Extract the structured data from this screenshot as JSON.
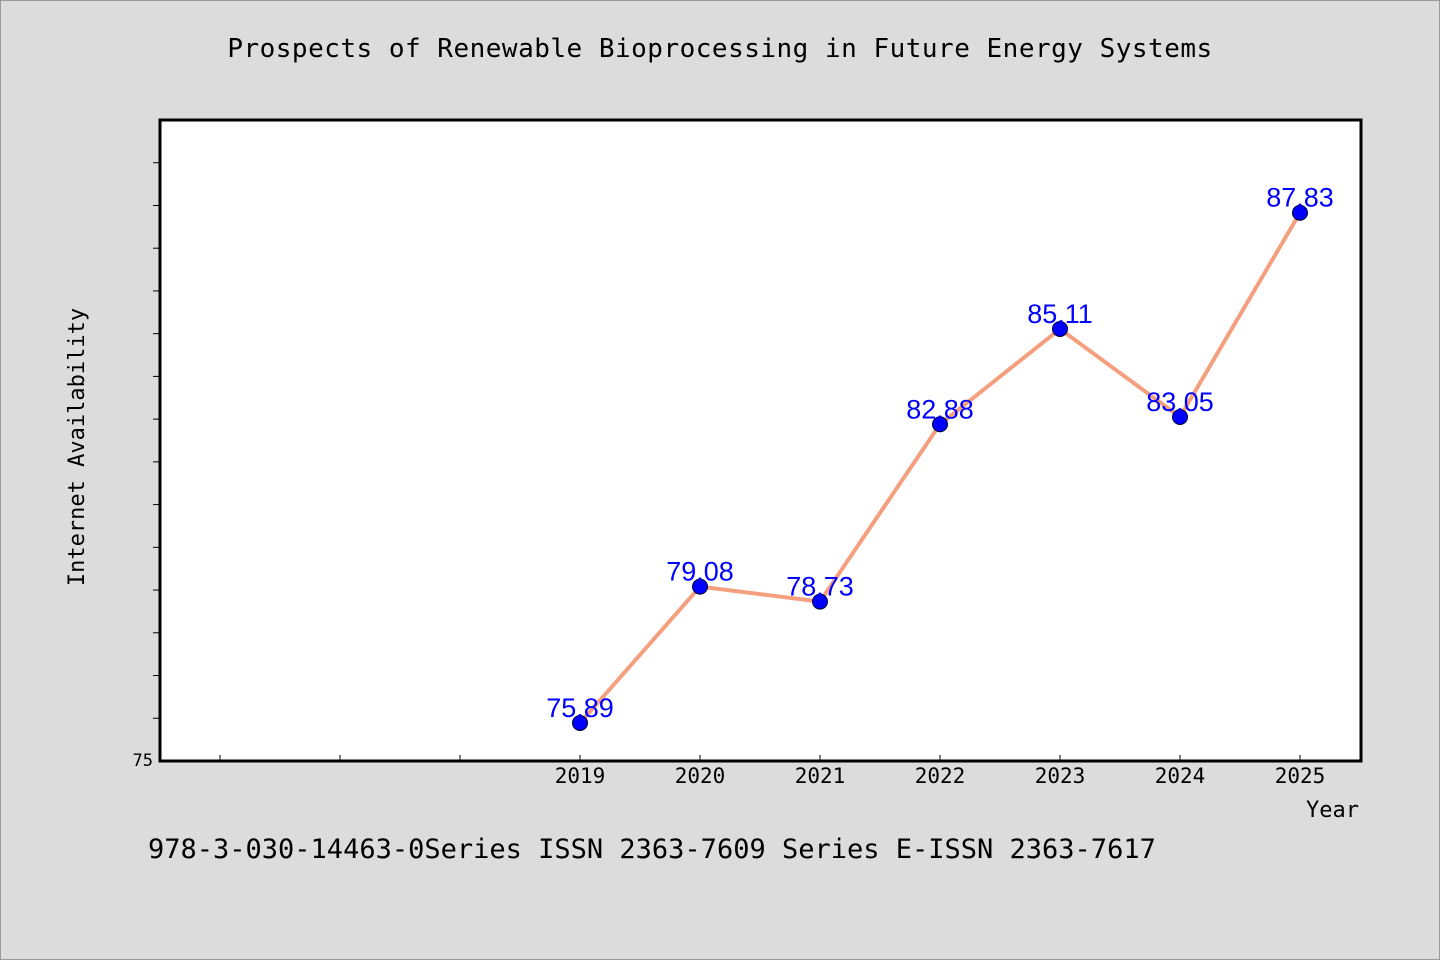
{
  "chart_data": {
    "type": "line",
    "title": "Prospects of Renewable Bioprocessing in Future Energy Systems",
    "xlabel": "Year",
    "ylabel": "Internet Availability",
    "y_tick_labels": [
      "75"
    ],
    "categories": [
      "2019",
      "2020",
      "2021",
      "2022",
      "2023",
      "2024",
      "2025"
    ],
    "series": [
      {
        "values": [
          75.89,
          79.08,
          78.73,
          82.88,
          85.11,
          83.05,
          87.83
        ]
      }
    ],
    "data_labels": [
      "75.89",
      "79.08",
      "78.73",
      "82.88",
      "85.11",
      "83.05",
      "87.83"
    ],
    "ylim": [
      75,
      90
    ],
    "grid": false,
    "line_color": "#f4a07f",
    "marker_color": "#0000ff",
    "label_color": "#0000ff"
  },
  "footer_note": "978-3-030-14463-0Series ISSN 2363-7609 Series E-ISSN 2363-7617"
}
